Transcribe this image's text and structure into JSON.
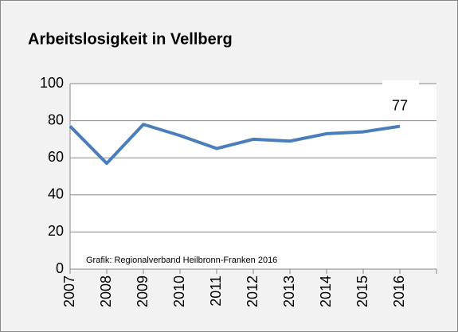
{
  "chart_data": {
    "type": "line",
    "title": "Arbeitslosigkeit in Vellberg",
    "annotation": "Grafik: Regionalverband Heilbronn-Franken 2016",
    "categories": [
      "2007",
      "2008",
      "2009",
      "2010",
      "2011",
      "2012",
      "2013",
      "2014",
      "2015",
      "2016"
    ],
    "series": [
      {
        "color": "#4a7ebb",
        "values": [
          77,
          57,
          78,
          72,
          65,
          70,
          69,
          73,
          74,
          77
        ]
      }
    ],
    "ylim": [
      0,
      100
    ],
    "yticks": [
      0,
      20,
      40,
      60,
      80,
      100
    ],
    "grid": true
  }
}
